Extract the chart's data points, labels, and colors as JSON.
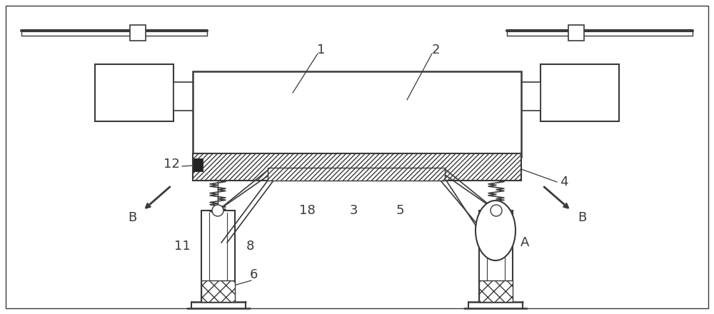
{
  "bg_color": "#ffffff",
  "lc": "#3a3a3a",
  "figsize": [
    10.0,
    4.4
  ],
  "dpi": 100,
  "xlim": [
    0,
    1000
  ],
  "ylim": [
    0,
    440
  ]
}
